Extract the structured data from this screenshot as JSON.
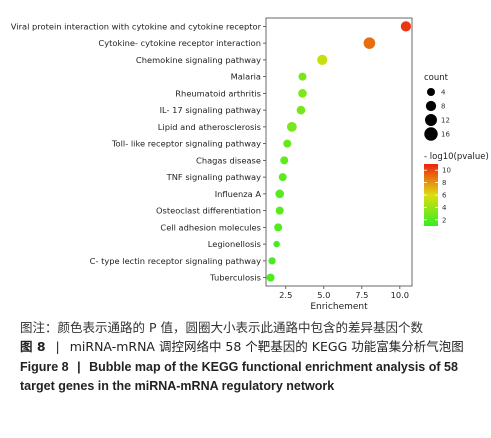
{
  "chart_data": {
    "type": "scatter",
    "xlabel": "Enrichement",
    "ylabel": "",
    "xlim": [
      1.2,
      10.8
    ],
    "xticks": [
      "2.5",
      "5.0",
      "7.5",
      "10.0"
    ],
    "xtick_values": [
      2.5,
      5.0,
      7.5,
      10.0
    ],
    "categories": [
      "Viral protein interaction with cytokine and cytokine receptor",
      "Cytokine- cytokine receptor interaction",
      "Chemokine signaling pathway",
      "Malaria",
      "Rheumatoid arthritis",
      "IL- 17 signaling pathway",
      "Lipid and atherosclerosis",
      "Toll- like receptor signaling pathway",
      "Chagas disease",
      "TNF signaling pathway",
      "Influenza A",
      "Osteoclast differentiation",
      "Cell adhesion molecules",
      "Legionellosis",
      "C- type lectin receptor signaling pathway",
      "Tuberculosis"
    ],
    "points": [
      {
        "category": "Viral protein interaction with cytokine and cytokine receptor",
        "enrichment": 10.4,
        "count": 8,
        "neglog10p": 10.5
      },
      {
        "category": "Cytokine- cytokine receptor interaction",
        "enrichment": 8.0,
        "count": 11,
        "neglog10p": 9.0
      },
      {
        "category": "Chemokine signaling pathway",
        "enrichment": 4.9,
        "count": 8,
        "neglog10p": 5.3
      },
      {
        "category": "Malaria",
        "enrichment": 3.6,
        "count": 4,
        "neglog10p": 3.0
      },
      {
        "category": "Rheumatoid arthritis",
        "enrichment": 3.6,
        "count": 5,
        "neglog10p": 3.2
      },
      {
        "category": "IL- 17 signaling pathway",
        "enrichment": 3.5,
        "count": 5,
        "neglog10p": 3.0
      },
      {
        "category": "Lipid and atherosclerosis",
        "enrichment": 2.9,
        "count": 7,
        "neglog10p": 3.1
      },
      {
        "category": "Toll- like receptor signaling pathway",
        "enrichment": 2.6,
        "count": 4,
        "neglog10p": 2.4
      },
      {
        "category": "Chagas disease",
        "enrichment": 2.4,
        "count": 4,
        "neglog10p": 2.3
      },
      {
        "category": "TNF signaling pathway",
        "enrichment": 2.3,
        "count": 4,
        "neglog10p": 2.2
      },
      {
        "category": "Influenza A",
        "enrichment": 2.1,
        "count": 5,
        "neglog10p": 2.1
      },
      {
        "category": "Osteoclast differentiation",
        "enrichment": 2.1,
        "count": 4,
        "neglog10p": 2.0
      },
      {
        "category": "Cell adhesion molecules",
        "enrichment": 2.0,
        "count": 4,
        "neglog10p": 1.9
      },
      {
        "category": "Legionellosis",
        "enrichment": 1.9,
        "count": 2,
        "neglog10p": 1.5
      },
      {
        "category": "C- type lectin receptor signaling pathway",
        "enrichment": 1.6,
        "count": 3,
        "neglog10p": 1.6
      },
      {
        "category": "Tuberculosis",
        "enrichment": 1.5,
        "count": 4,
        "neglog10p": 1.7
      }
    ],
    "size_legend": {
      "title": "count",
      "values": [
        4,
        8,
        12,
        16
      ]
    },
    "color_legend": {
      "title": "- log10(pvalue)",
      "ticks": [
        10,
        8,
        6,
        4,
        2
      ],
      "range": [
        1,
        11
      ],
      "low_color": "#33ee22",
      "mid_color": "#dddd10",
      "high_color": "#ee2211"
    },
    "grid": false,
    "legend_placement": "right"
  },
  "caption": {
    "note_cn": "图注：颜色表示通路的 P 值，圆圈大小表示此通路中包含的差异基因个数",
    "figure_no_cn": "图 8",
    "title_cn": "miRNA-mRNA 调控网络中 58 个靶基因的 KEGG 功能富集分析气泡图",
    "figure_no_en": "Figure 8",
    "title_en": "Bubble map of the KEGG functional enrichment analysis of 58 target genes in the miRNA-mRNA regulatory network",
    "separator": "|"
  }
}
